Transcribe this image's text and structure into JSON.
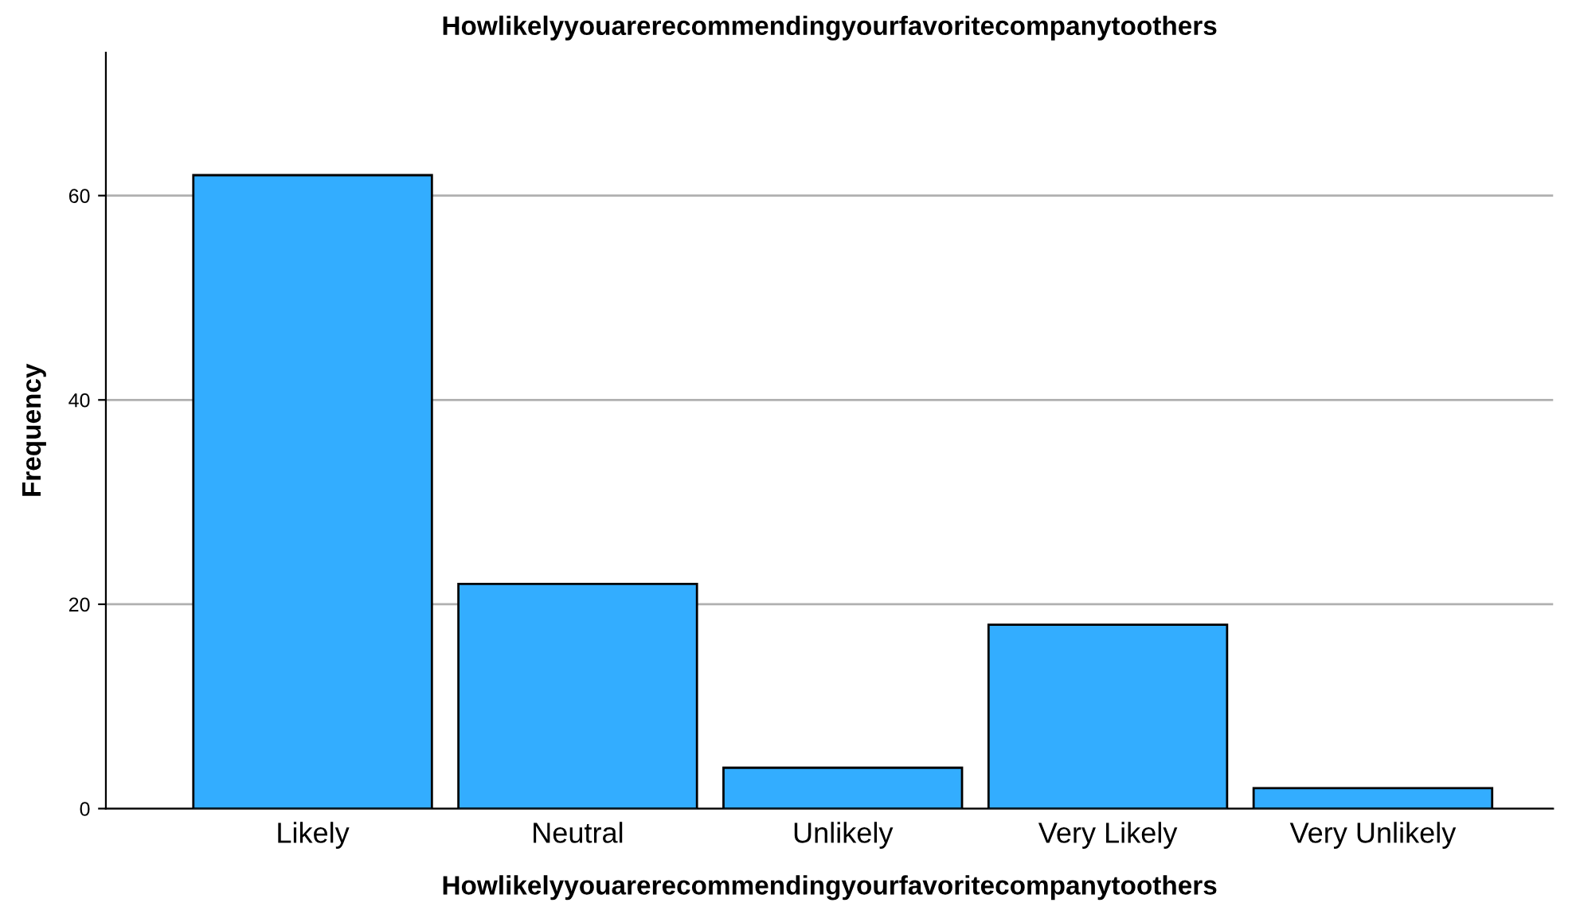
{
  "chart_data": {
    "type": "bar",
    "title": "Howlikelyyouarerecommendingyourfavoritecompanytoothers",
    "xlabel": "Howlikelyyouarerecommendingyourfavoritecompanytoothers",
    "ylabel": "Frequency",
    "categories": [
      "Likely",
      "Neutral",
      "Unlikely",
      "Very Likely",
      "Very Unlikely"
    ],
    "values": [
      62,
      22,
      4,
      18,
      2
    ],
    "color": "#33adff",
    "ylim": [
      0,
      74
    ],
    "yticks": [
      0,
      20,
      40,
      60
    ],
    "grid": "y"
  }
}
